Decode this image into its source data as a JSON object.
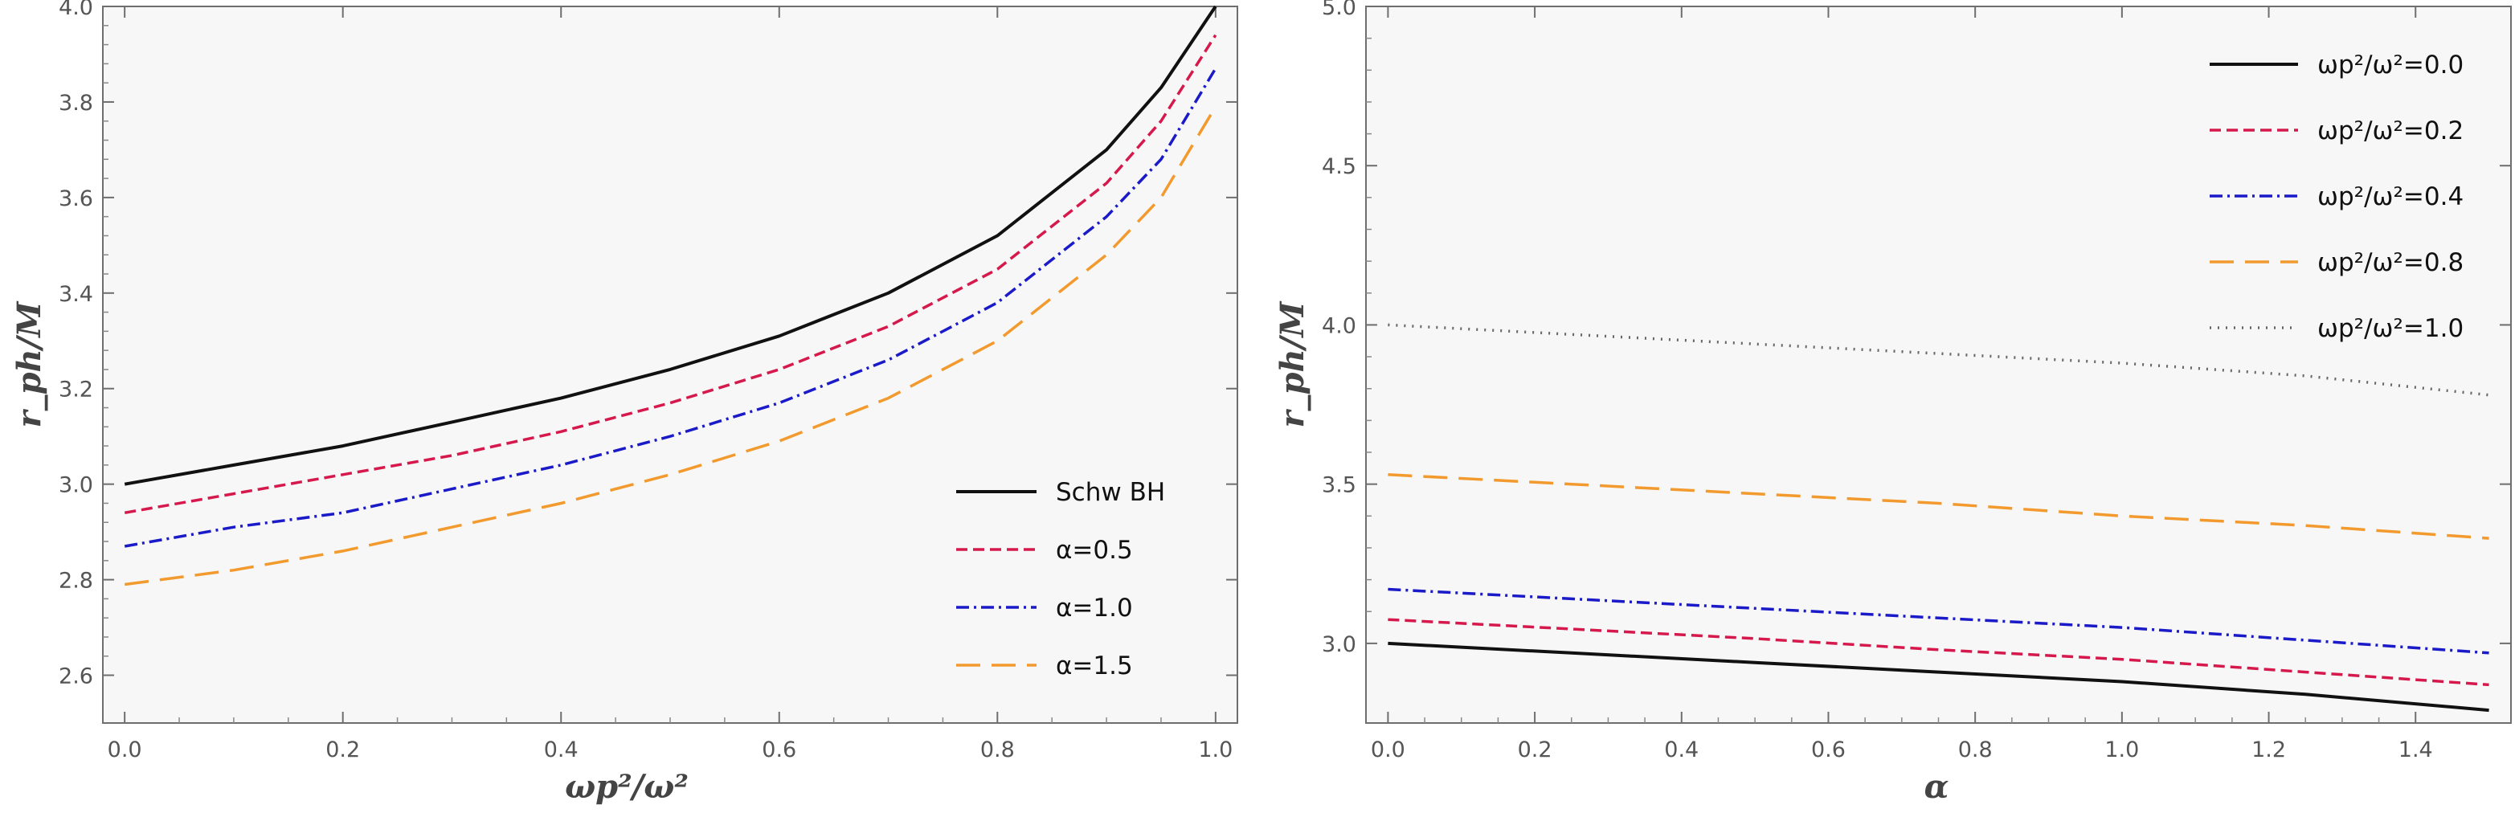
{
  "colors": {
    "black": "#111111",
    "crimson": "#d6194c",
    "blue": "#1a1ac8",
    "orange": "#f29a2e",
    "gray": "#666666"
  },
  "chart_data": [
    {
      "type": "line",
      "xlabel": "ωp²/ω²",
      "ylabel": "r_ph/M",
      "xlim": [
        -0.02,
        1.02
      ],
      "ylim": [
        2.5,
        4.0
      ],
      "xticks": [
        "0.0",
        "0.2",
        "0.4",
        "0.6",
        "0.8",
        "1.0"
      ],
      "xtick_values": [
        0.0,
        0.2,
        0.4,
        0.6,
        0.8,
        1.0
      ],
      "yticks": [
        "2.6",
        "2.8",
        "3.0",
        "3.2",
        "3.4",
        "3.6",
        "3.8",
        "4.0"
      ],
      "ytick_values": [
        2.6,
        2.8,
        3.0,
        3.2,
        3.4,
        3.6,
        3.8,
        4.0
      ],
      "legend_position": "bottom-right",
      "grid": false,
      "x": [
        0.0,
        0.1,
        0.2,
        0.3,
        0.4,
        0.5,
        0.6,
        0.7,
        0.8,
        0.9,
        0.95,
        1.0
      ],
      "series": [
        {
          "name": "Schw BH",
          "style": "solid",
          "color": "#111111",
          "values": [
            3.0,
            3.04,
            3.08,
            3.13,
            3.18,
            3.24,
            3.31,
            3.4,
            3.52,
            3.7,
            3.83,
            4.0
          ]
        },
        {
          "name": "α=0.5",
          "style": "short-dash",
          "color": "#d6194c",
          "values": [
            2.94,
            2.98,
            3.02,
            3.06,
            3.11,
            3.17,
            3.24,
            3.33,
            3.45,
            3.63,
            3.76,
            3.94
          ]
        },
        {
          "name": "α=1.0",
          "style": "dash-dot",
          "color": "#1a1ac8",
          "values": [
            2.87,
            2.91,
            2.94,
            2.99,
            3.04,
            3.1,
            3.17,
            3.26,
            3.38,
            3.56,
            3.68,
            3.87
          ]
        },
        {
          "name": "α=1.5",
          "style": "long-dash",
          "color": "#f29a2e",
          "values": [
            2.79,
            2.82,
            2.86,
            2.91,
            2.96,
            3.02,
            3.09,
            3.18,
            3.3,
            3.48,
            3.6,
            3.79
          ]
        }
      ]
    },
    {
      "type": "line",
      "xlabel": "α",
      "ylabel": "r_ph/M",
      "xlim": [
        -0.03,
        1.53
      ],
      "ylim": [
        2.75,
        5.0
      ],
      "xticks": [
        "0.0",
        "0.2",
        "0.4",
        "0.6",
        "0.8",
        "1.0",
        "1.2",
        "1.4"
      ],
      "xtick_values": [
        0.0,
        0.2,
        0.4,
        0.6,
        0.8,
        1.0,
        1.2,
        1.4
      ],
      "yticks": [
        "3.0",
        "3.5",
        "4.0",
        "4.5",
        "5.0"
      ],
      "ytick_values": [
        3.0,
        3.5,
        4.0,
        4.5,
        5.0
      ],
      "legend_position": "top-right",
      "grid": false,
      "x": [
        0.0,
        0.25,
        0.5,
        0.75,
        1.0,
        1.25,
        1.5
      ],
      "series": [
        {
          "name": "ωp²/ω²=0.0",
          "style": "solid",
          "color": "#111111",
          "values": [
            3.0,
            2.97,
            2.94,
            2.91,
            2.88,
            2.84,
            2.79
          ]
        },
        {
          "name": "ωp²/ω²=0.2",
          "style": "short-dash",
          "color": "#d6194c",
          "values": [
            3.075,
            3.045,
            3.015,
            2.98,
            2.95,
            2.91,
            2.87
          ]
        },
        {
          "name": "ωp²/ω²=0.4",
          "style": "dash-dot",
          "color": "#1a1ac8",
          "values": [
            3.17,
            3.14,
            3.11,
            3.08,
            3.05,
            3.01,
            2.97
          ]
        },
        {
          "name": "ωp²/ω²=0.8",
          "style": "long-dash",
          "color": "#f29a2e",
          "values": [
            3.53,
            3.5,
            3.47,
            3.44,
            3.4,
            3.37,
            3.33
          ]
        },
        {
          "name": "ωp²/ω²=1.0",
          "style": "dotted",
          "color": "#666666",
          "values": [
            4.0,
            3.97,
            3.94,
            3.91,
            3.88,
            3.84,
            3.78
          ]
        }
      ]
    }
  ]
}
